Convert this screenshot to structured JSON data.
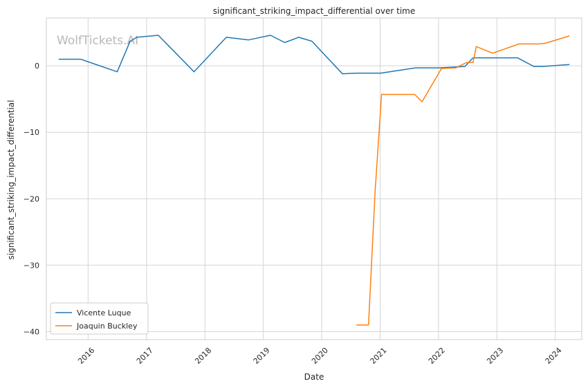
{
  "chart_data": {
    "type": "line",
    "title": "significant_striking_impact_differential over time",
    "xlabel": "Date",
    "ylabel": "significant_striking_impact_differential",
    "watermark": "WolfTickets.AI",
    "x_ticks": [
      "2016",
      "2017",
      "2018",
      "2019",
      "2020",
      "2021",
      "2022",
      "2023",
      "2024"
    ],
    "y_ticks": [
      "0",
      "−10",
      "−20",
      "−30",
      "−40"
    ],
    "ylim": [
      -41.2,
      7.2
    ],
    "xlim": [
      "2015-04-15",
      "2024-06-15"
    ],
    "grid": true,
    "legend_position": "lower-left",
    "series": [
      {
        "name": "Vicente Luque",
        "color": "#1f77b4",
        "points": [
          {
            "x": "2015-07-01",
            "y": 1.0
          },
          {
            "x": "2015-11-15",
            "y": 1.0
          },
          {
            "x": "2016-07-01",
            "y": -0.9
          },
          {
            "x": "2016-09-20",
            "y": 3.7
          },
          {
            "x": "2016-11-01",
            "y": 4.3
          },
          {
            "x": "2017-03-15",
            "y": 4.6
          },
          {
            "x": "2017-10-25",
            "y": -0.9
          },
          {
            "x": "2018-05-15",
            "y": 4.3
          },
          {
            "x": "2018-10-01",
            "y": 3.9
          },
          {
            "x": "2019-02-15",
            "y": 4.6
          },
          {
            "x": "2019-05-15",
            "y": 3.5
          },
          {
            "x": "2019-08-10",
            "y": 4.3
          },
          {
            "x": "2019-11-01",
            "y": 3.7
          },
          {
            "x": "2020-05-10",
            "y": -1.2
          },
          {
            "x": "2020-08-10",
            "y": -1.1
          },
          {
            "x": "2021-01-05",
            "y": -1.1
          },
          {
            "x": "2021-08-10",
            "y": -0.3
          },
          {
            "x": "2022-01-05",
            "y": -0.3
          },
          {
            "x": "2022-06-15",
            "y": -0.1
          },
          {
            "x": "2022-08-05",
            "y": 1.2
          },
          {
            "x": "2023-05-10",
            "y": 1.2
          },
          {
            "x": "2023-08-20",
            "y": -0.1
          },
          {
            "x": "2023-10-15",
            "y": -0.1
          },
          {
            "x": "2024-03-30",
            "y": 0.2
          }
        ]
      },
      {
        "name": "Joaquin Buckley",
        "color": "#ff7f0e",
        "points": [
          {
            "x": "2020-08-05",
            "y": -39.0
          },
          {
            "x": "2020-10-20",
            "y": -39.0
          },
          {
            "x": "2020-11-30",
            "y": -19.0
          },
          {
            "x": "2021-01-10",
            "y": -4.3
          },
          {
            "x": "2021-08-05",
            "y": -4.3
          },
          {
            "x": "2021-09-20",
            "y": -5.4
          },
          {
            "x": "2022-01-20",
            "y": -0.4
          },
          {
            "x": "2022-04-20",
            "y": -0.3
          },
          {
            "x": "2022-06-25",
            "y": 0.5
          },
          {
            "x": "2022-08-05",
            "y": 0.5
          },
          {
            "x": "2022-08-25",
            "y": 2.9
          },
          {
            "x": "2022-12-05",
            "y": 1.9
          },
          {
            "x": "2023-05-20",
            "y": 3.3
          },
          {
            "x": "2023-09-20",
            "y": 3.3
          },
          {
            "x": "2023-11-01",
            "y": 3.4
          },
          {
            "x": "2024-03-30",
            "y": 4.5
          }
        ]
      }
    ]
  }
}
